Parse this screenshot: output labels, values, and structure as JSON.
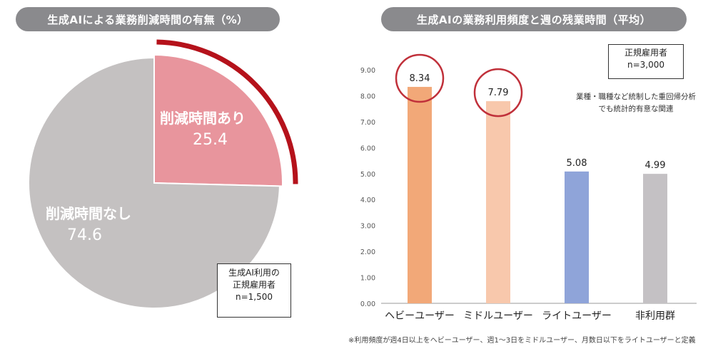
{
  "pie_panel": {
    "title": "生成AIによる業務削減時間の有無（%）",
    "box_lines": [
      "生成AI利用の",
      "正規雇用者",
      "n=1,500"
    ]
  },
  "bar_panel": {
    "title": "生成AIの業務利用頻度と週の残業時間（平均）",
    "box_lines": [
      "正規雇用者",
      "n=3,000"
    ],
    "note_lines": [
      "業種・職種など統制した重回帰分析",
      "でも統計的有意な関連"
    ],
    "footnote": "※利用頻度が週4日以上をヘビーユーザー、週1〜3日をミドルユーザー、月数日以下をライトユーザーと定義"
  },
  "chart_data": [
    {
      "type": "pie",
      "slices": [
        {
          "label": "削減時間あり",
          "value": 25.4,
          "value_label": "25.4",
          "color": "#e8959d"
        },
        {
          "label": "削減時間なし",
          "value": 74.6,
          "value_label": "74.6",
          "color": "#c4c1c1"
        }
      ],
      "highlight_color": "#b5121b"
    },
    {
      "type": "bar",
      "categories": [
        "ヘビーユーザー",
        "ミドルユーザー",
        "ライトユーザー",
        "非利用群"
      ],
      "values": [
        8.34,
        7.79,
        5.08,
        4.99
      ],
      "value_labels": [
        "8.34",
        "7.79",
        "5.08",
        "4.99"
      ],
      "colors": [
        "#f2a878",
        "#f8c8ac",
        "#8fa4d9",
        "#c4c1c4"
      ],
      "circled": [
        "8.34",
        "7.79"
      ],
      "circle_color": "#c0303a",
      "ylim": [
        0,
        9
      ],
      "yticks": [
        "0.00",
        "1.00",
        "2.00",
        "3.00",
        "4.00",
        "5.00",
        "6.00",
        "7.00",
        "8.00",
        "9.00"
      ],
      "grid": false
    }
  ]
}
